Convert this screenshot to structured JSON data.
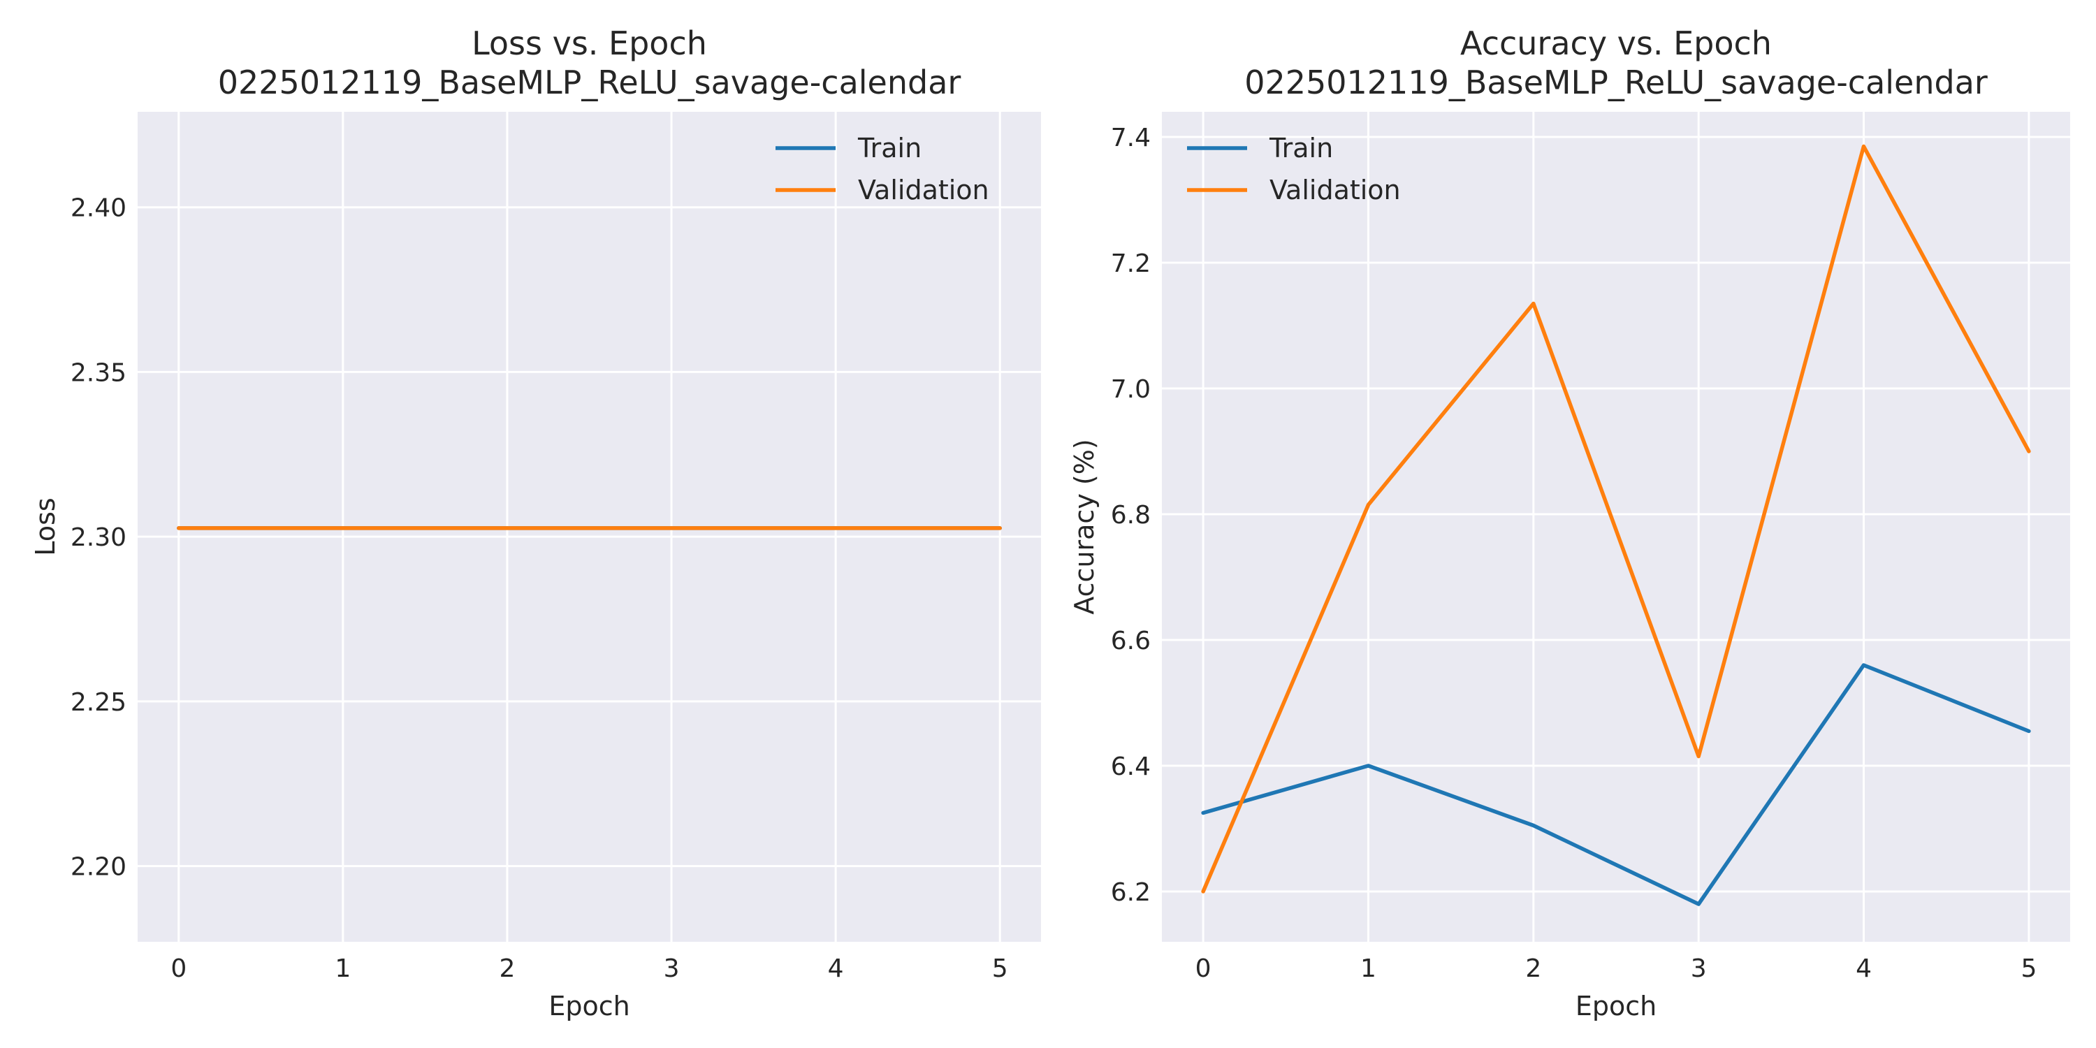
{
  "chart_data": [
    {
      "type": "line",
      "title": "Loss vs. Epoch\n0225012119_BaseMLP_ReLU_savage-calendar",
      "title_lines": [
        "Loss vs. Epoch",
        "0225012119_BaseMLP_ReLU_savage-calendar"
      ],
      "xlabel": "Epoch",
      "ylabel": "Loss",
      "x": [
        0,
        1,
        2,
        3,
        4,
        5
      ],
      "xticks": [
        0,
        1,
        2,
        3,
        4,
        5
      ],
      "xlim": [
        -0.25,
        5.25
      ],
      "yticks": [
        2.2,
        2.25,
        2.3,
        2.35,
        2.4
      ],
      "ytick_labels": [
        "2.20",
        "2.25",
        "2.30",
        "2.35",
        "2.40"
      ],
      "ylim": [
        2.177,
        2.429
      ],
      "grid": true,
      "legend_position": "upper right",
      "series": [
        {
          "name": "Train",
          "color": "#1f77b4",
          "values": [
            2.3026,
            2.3026,
            2.3026,
            2.3026,
            2.3026,
            2.3026
          ]
        },
        {
          "name": "Validation",
          "color": "#ff7f0e",
          "values": [
            2.3026,
            2.3026,
            2.3026,
            2.3026,
            2.3026,
            2.3026
          ]
        }
      ]
    },
    {
      "type": "line",
      "title": "Accuracy vs. Epoch\n0225012119_BaseMLP_ReLU_savage-calendar",
      "title_lines": [
        "Accuracy vs. Epoch",
        "0225012119_BaseMLP_ReLU_savage-calendar"
      ],
      "xlabel": "Epoch",
      "ylabel": "Accuracy (%)",
      "x": [
        0,
        1,
        2,
        3,
        4,
        5
      ],
      "xticks": [
        0,
        1,
        2,
        3,
        4,
        5
      ],
      "xlim": [
        -0.25,
        5.25
      ],
      "yticks": [
        6.2,
        6.4,
        6.6,
        6.8,
        7.0,
        7.2,
        7.4
      ],
      "ytick_labels": [
        "6.2",
        "6.4",
        "6.6",
        "6.8",
        "7.0",
        "7.2",
        "7.4"
      ],
      "ylim": [
        6.12,
        7.44
      ],
      "grid": true,
      "legend_position": "upper left",
      "series": [
        {
          "name": "Train",
          "color": "#1f77b4",
          "values": [
            6.325,
            6.4,
            6.305,
            6.18,
            6.56,
            6.455
          ]
        },
        {
          "name": "Validation",
          "color": "#ff7f0e",
          "values": [
            6.2,
            6.815,
            7.135,
            6.415,
            7.385,
            6.9
          ]
        }
      ]
    }
  ],
  "style": {
    "plot_background": "#eaeaf2",
    "grid_color": "#ffffff",
    "text_color": "#262626"
  }
}
